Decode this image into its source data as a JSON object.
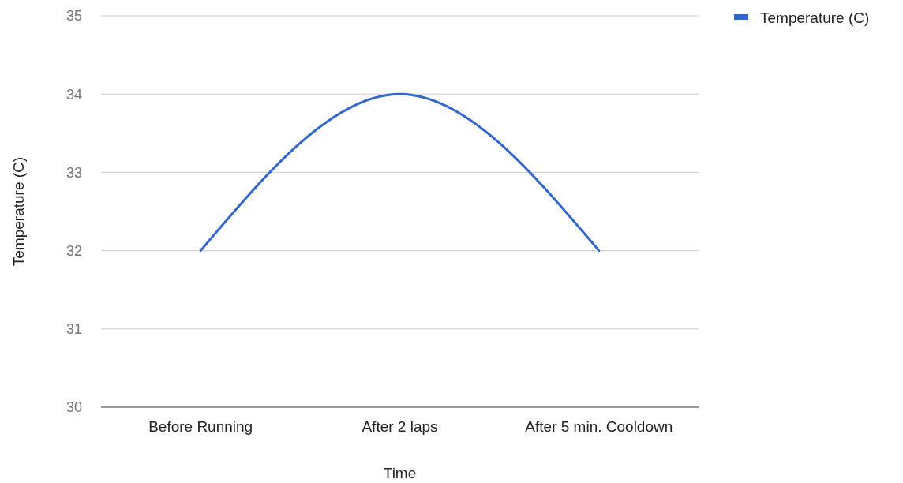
{
  "chart_data": {
    "type": "line",
    "xlabel": "Time",
    "ylabel": "Temperature (C)",
    "categories": [
      "Before Running",
      "After 2 laps",
      "After 5 min. Cooldown"
    ],
    "series": [
      {
        "name": "Temperature (C)",
        "color": "#3366cc",
        "values": [
          32,
          34,
          32
        ]
      }
    ],
    "ylim": [
      30,
      35
    ],
    "yticks": [
      30,
      31,
      32,
      33,
      34,
      35
    ],
    "grid": "y",
    "legend": "top right"
  }
}
